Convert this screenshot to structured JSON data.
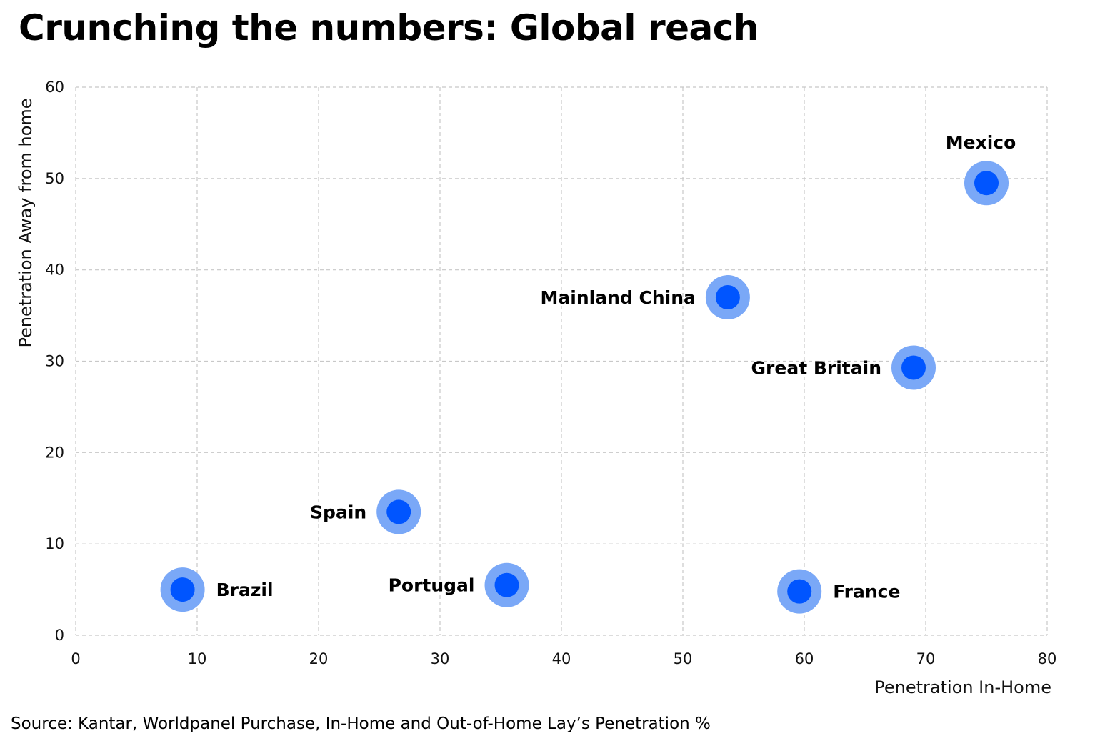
{
  "title": "Crunching the numbers: Global reach",
  "source": "Source: Kantar, Worldpanel Purchase, In-Home and Out-of-Home Lay’s Penetration %",
  "colors": {
    "marker_inner": "#0055ff",
    "marker_halo": "#7aa8f7",
    "grid": "#c8c8c8"
  },
  "chart_data": {
    "type": "scatter",
    "xlabel": "Penetration In-Home",
    "ylabel": "Penetration Away from home",
    "xlim": [
      0,
      80
    ],
    "ylim": [
      0,
      60
    ],
    "xticks": [
      0,
      10,
      20,
      30,
      40,
      50,
      60,
      70,
      80
    ],
    "yticks": [
      0,
      10,
      20,
      30,
      40,
      50,
      60
    ],
    "grid": true,
    "points": [
      {
        "label": "Brazil",
        "x": 8.8,
        "y": 5.0,
        "label_side": "right"
      },
      {
        "label": "Spain",
        "x": 26.6,
        "y": 13.5,
        "label_side": "left"
      },
      {
        "label": "Portugal",
        "x": 35.5,
        "y": 5.5,
        "label_side": "left"
      },
      {
        "label": "Mainland China",
        "x": 53.7,
        "y": 37.0,
        "label_side": "left"
      },
      {
        "label": "France",
        "x": 59.6,
        "y": 4.8,
        "label_side": "right"
      },
      {
        "label": "Great Britain",
        "x": 69.0,
        "y": 29.3,
        "label_side": "left"
      },
      {
        "label": "Mexico",
        "x": 75.0,
        "y": 49.5,
        "label_side": "top"
      }
    ]
  }
}
